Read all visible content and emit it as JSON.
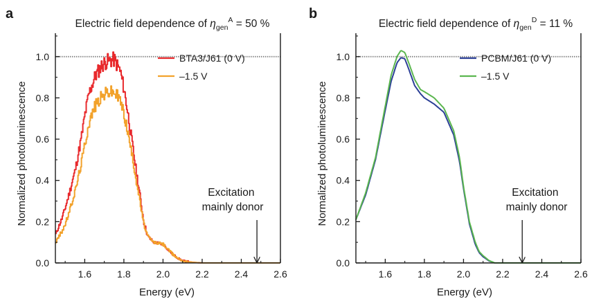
{
  "chart_data": [
    {
      "type": "line",
      "panel": "a",
      "title": {
        "prefix": "Electric field dependence of ",
        "eta": "η",
        "sub": "gen",
        "sup": "A",
        "suffix": " = 50 %"
      },
      "xlabel": "Energy (eV)",
      "ylabel": "Normalized photoluminescence",
      "xlim": [
        1.45,
        2.6
      ],
      "ylim": [
        0.0,
        1.1
      ],
      "xticks": [
        "1.6",
        "1.8",
        "2.0",
        "2.2",
        "2.4",
        "2.6"
      ],
      "yticks": [
        "0.0",
        "0.2",
        "0.4",
        "0.6",
        "0.8",
        "1.0"
      ],
      "reference_line_y": 1.0,
      "legend_position": "top-right",
      "annotation": {
        "lines": [
          "Excitation",
          "mainly donor"
        ],
        "arrow_x": 2.48
      },
      "series": [
        {
          "name": "BTA3/J61 (0 V)",
          "color": "#e8292c",
          "noisy": true,
          "x": [
            1.45,
            1.48,
            1.5,
            1.52,
            1.55,
            1.58,
            1.6,
            1.62,
            1.65,
            1.68,
            1.7,
            1.72,
            1.75,
            1.78,
            1.8,
            1.82,
            1.85,
            1.88,
            1.9,
            1.92,
            1.95,
            1.98,
            2.0,
            2.02,
            2.05,
            2.08,
            2.1,
            2.15,
            2.2,
            2.3,
            2.4,
            2.5,
            2.6
          ],
          "y": [
            0.14,
            0.21,
            0.27,
            0.34,
            0.45,
            0.6,
            0.72,
            0.82,
            0.9,
            0.95,
            0.97,
            0.98,
            0.985,
            0.93,
            0.84,
            0.72,
            0.52,
            0.33,
            0.2,
            0.13,
            0.1,
            0.095,
            0.09,
            0.07,
            0.04,
            0.02,
            0.01,
            0.003,
            0.0,
            0.0,
            0.0,
            0.0,
            0.0
          ]
        },
        {
          "name": "–1.5 V",
          "color": "#f2a22b",
          "noisy": true,
          "x": [
            1.45,
            1.48,
            1.5,
            1.52,
            1.55,
            1.58,
            1.6,
            1.62,
            1.65,
            1.68,
            1.7,
            1.72,
            1.75,
            1.78,
            1.8,
            1.82,
            1.85,
            1.88,
            1.9,
            1.92,
            1.95,
            1.98,
            2.0,
            2.02,
            2.05,
            2.08,
            2.1,
            2.15,
            2.2,
            2.3,
            2.4,
            2.5,
            2.6
          ],
          "y": [
            0.1,
            0.15,
            0.19,
            0.25,
            0.35,
            0.48,
            0.58,
            0.68,
            0.76,
            0.8,
            0.82,
            0.83,
            0.83,
            0.79,
            0.72,
            0.63,
            0.47,
            0.3,
            0.19,
            0.13,
            0.1,
            0.095,
            0.09,
            0.07,
            0.04,
            0.02,
            0.01,
            0.003,
            0.0,
            0.0,
            0.0,
            0.0,
            0.0
          ]
        }
      ]
    },
    {
      "type": "line",
      "panel": "b",
      "title": {
        "prefix": "Electric field dependence of ",
        "eta": "η",
        "sub": "gen",
        "sup": "D",
        "suffix": " = 11 %"
      },
      "xlabel": "Energy (eV)",
      "ylabel": "Normalized photoluminescence",
      "xlim": [
        1.45,
        2.6
      ],
      "ylim": [
        0.0,
        1.1
      ],
      "xticks": [
        "1.6",
        "1.8",
        "2.0",
        "2.2",
        "2.4",
        "2.6"
      ],
      "yticks": [
        "0.0",
        "0.2",
        "0.4",
        "0.6",
        "0.8",
        "1.0"
      ],
      "reference_line_y": 1.0,
      "legend_position": "top-right",
      "annotation": {
        "lines": [
          "Excitation",
          "mainly donor"
        ],
        "arrow_x": 2.3
      },
      "series": [
        {
          "name": "PCBM/J61 (0 V)",
          "color": "#2b3f96",
          "noisy": false,
          "x": [
            1.45,
            1.5,
            1.55,
            1.6,
            1.63,
            1.66,
            1.68,
            1.7,
            1.72,
            1.75,
            1.78,
            1.8,
            1.85,
            1.9,
            1.95,
            1.98,
            2.0,
            2.03,
            2.06,
            2.08,
            2.1,
            2.13,
            2.16,
            2.2,
            2.3,
            2.4,
            2.5,
            2.6
          ],
          "y": [
            0.21,
            0.33,
            0.5,
            0.74,
            0.88,
            0.97,
            0.995,
            0.99,
            0.94,
            0.86,
            0.82,
            0.8,
            0.77,
            0.73,
            0.62,
            0.49,
            0.36,
            0.19,
            0.09,
            0.05,
            0.03,
            0.01,
            0.0,
            0.0,
            0.0,
            0.0,
            0.0,
            0.0
          ]
        },
        {
          "name": "–1.5 V",
          "color": "#5bb64f",
          "noisy": false,
          "x": [
            1.45,
            1.5,
            1.55,
            1.6,
            1.63,
            1.66,
            1.68,
            1.7,
            1.72,
            1.75,
            1.78,
            1.8,
            1.85,
            1.9,
            1.95,
            1.98,
            2.0,
            2.03,
            2.06,
            2.08,
            2.1,
            2.13,
            2.16,
            2.2,
            2.3,
            2.4,
            2.5,
            2.6
          ],
          "y": [
            0.21,
            0.34,
            0.51,
            0.76,
            0.91,
            1.0,
            1.03,
            1.02,
            0.97,
            0.89,
            0.84,
            0.83,
            0.8,
            0.75,
            0.64,
            0.51,
            0.37,
            0.2,
            0.1,
            0.055,
            0.035,
            0.012,
            0.0,
            0.0,
            0.0,
            0.0,
            0.0,
            0.0
          ]
        }
      ]
    }
  ]
}
